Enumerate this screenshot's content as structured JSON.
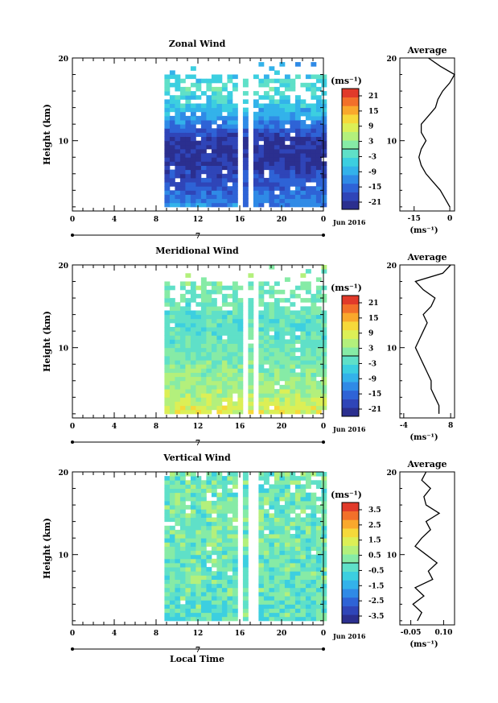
{
  "colors": {
    "scale": [
      "#2b2f8f",
      "#2f45b8",
      "#2e63d6",
      "#2f8ae6",
      "#33b2ea",
      "#3ccfe0",
      "#5fe0c8",
      "#86eba6",
      "#b3f07c",
      "#dcef56",
      "#f6d93a",
      "#f9a82c",
      "#f2702a",
      "#e13a2a"
    ],
    "frame": "#000000"
  },
  "shared": {
    "xlabel": "Local Time",
    "date_label": "Jun 2016",
    "day_label": "7",
    "xticks": [
      "0",
      "4",
      "8",
      "12",
      "16",
      "20",
      "0"
    ],
    "yticks": [
      "20",
      "10"
    ],
    "ylabel": "Height (km)",
    "unit_label": "(ms⁻¹)",
    "avg_title": "Average"
  },
  "chart_data": [
    {
      "type": "heatmap",
      "title": "Zonal Wind",
      "ylabel": "Height (km)",
      "xlim": [
        0,
        24
      ],
      "ylim": [
        1.5,
        20
      ],
      "data_start_hour": 8.8,
      "gaps_hours": [
        [
          15.7,
          16.2
        ],
        [
          16.8,
          17.3
        ]
      ],
      "profile": [
        [
          2,
          -12
        ],
        [
          4,
          -16
        ],
        [
          6,
          -19
        ],
        [
          8,
          -22
        ],
        [
          10,
          -21
        ],
        [
          12,
          -12
        ],
        [
          14,
          -6
        ],
        [
          16,
          -2
        ],
        [
          18,
          -6
        ],
        [
          20,
          -10
        ]
      ],
      "colorbar": {
        "ticks": [
          "21",
          "15",
          "9",
          "3",
          "-3",
          "-9",
          "-15",
          "-21"
        ],
        "range": [
          -24,
          24
        ]
      },
      "average": {
        "title": "Average",
        "xticks": [
          "-15",
          "0"
        ],
        "xlim": [
          -21,
          2
        ],
        "xlabel": "(ms⁻¹)",
        "y": [
          2,
          3,
          4,
          5,
          6,
          7,
          8,
          9,
          10,
          11,
          12,
          13,
          14,
          15,
          16,
          17,
          18,
          19,
          20
        ],
        "values": [
          0,
          -2,
          -4,
          -7,
          -10,
          -12,
          -13,
          -12,
          -10,
          -12,
          -12,
          -9,
          -6,
          -5,
          -3,
          0,
          2,
          -4,
          -9
        ]
      }
    },
    {
      "type": "heatmap",
      "title": "Meridional Wind",
      "ylabel": "Height (km)",
      "xlim": [
        0,
        24
      ],
      "ylim": [
        1.5,
        20
      ],
      "data_start_hour": 8.8,
      "gaps_hours": [
        [
          16.0,
          16.5
        ],
        [
          17.1,
          17.5
        ]
      ],
      "profile": [
        [
          2,
          9
        ],
        [
          3,
          7
        ],
        [
          4,
          5
        ],
        [
          6,
          3
        ],
        [
          8,
          1
        ],
        [
          10,
          -1
        ],
        [
          12,
          -2
        ],
        [
          14,
          -1
        ],
        [
          16,
          0
        ],
        [
          18,
          2
        ]
      ],
      "colorbar": {
        "ticks": [
          "21",
          "15",
          "9",
          "3",
          "-3",
          "-9",
          "-15",
          "-21"
        ],
        "range": [
          -24,
          24
        ]
      },
      "average": {
        "title": "Average",
        "xticks": [
          "-4",
          "8"
        ],
        "xlim": [
          -5,
          9
        ],
        "xlabel": "(ms⁻¹)",
        "y": [
          2,
          3,
          4,
          5,
          6,
          7,
          8,
          9,
          10,
          11,
          12,
          13,
          14,
          15,
          16,
          17,
          18,
          19,
          20
        ],
        "values": [
          5,
          5,
          4,
          3,
          3,
          2,
          1,
          0,
          -1,
          0,
          1,
          2,
          1,
          3,
          4,
          1,
          -1,
          6,
          8
        ]
      }
    },
    {
      "type": "heatmap",
      "title": "Vertical Wind",
      "ylabel": "Height (km)",
      "xlim": [
        0,
        24
      ],
      "ylim": [
        1.5,
        20
      ],
      "data_start_hour": 8.8,
      "gaps_hours": [
        [
          15.5,
          16.1
        ],
        [
          16.8,
          17.4
        ]
      ],
      "profile": [
        [
          2,
          -0.2
        ],
        [
          6,
          -0.1
        ],
        [
          10,
          0.0
        ],
        [
          14,
          0.1
        ],
        [
          18,
          0.0
        ],
        [
          20,
          0.0
        ]
      ],
      "colorbar": {
        "ticks": [
          "3.5",
          "2.5",
          "1.5",
          "0.5",
          "-0.5",
          "-1.5",
          "-2.5",
          "-3.5"
        ],
        "range": [
          -4,
          4
        ]
      },
      "average": {
        "title": "Average",
        "xticks": [
          "-0.05",
          "0.10"
        ],
        "xlim": [
          -0.1,
          0.15
        ],
        "xlabel": "(ms⁻¹)",
        "y": [
          2,
          3,
          4,
          5,
          6,
          7,
          8,
          9,
          10,
          11,
          12,
          13,
          14,
          15,
          16,
          17,
          18,
          19,
          20
        ],
        "values": [
          -0.02,
          0.0,
          -0.04,
          0.01,
          -0.03,
          0.05,
          0.03,
          0.07,
          0.02,
          -0.03,
          0.0,
          0.04,
          0.02,
          0.08,
          0.02,
          0.01,
          0.04,
          0.0,
          0.02
        ]
      }
    }
  ]
}
